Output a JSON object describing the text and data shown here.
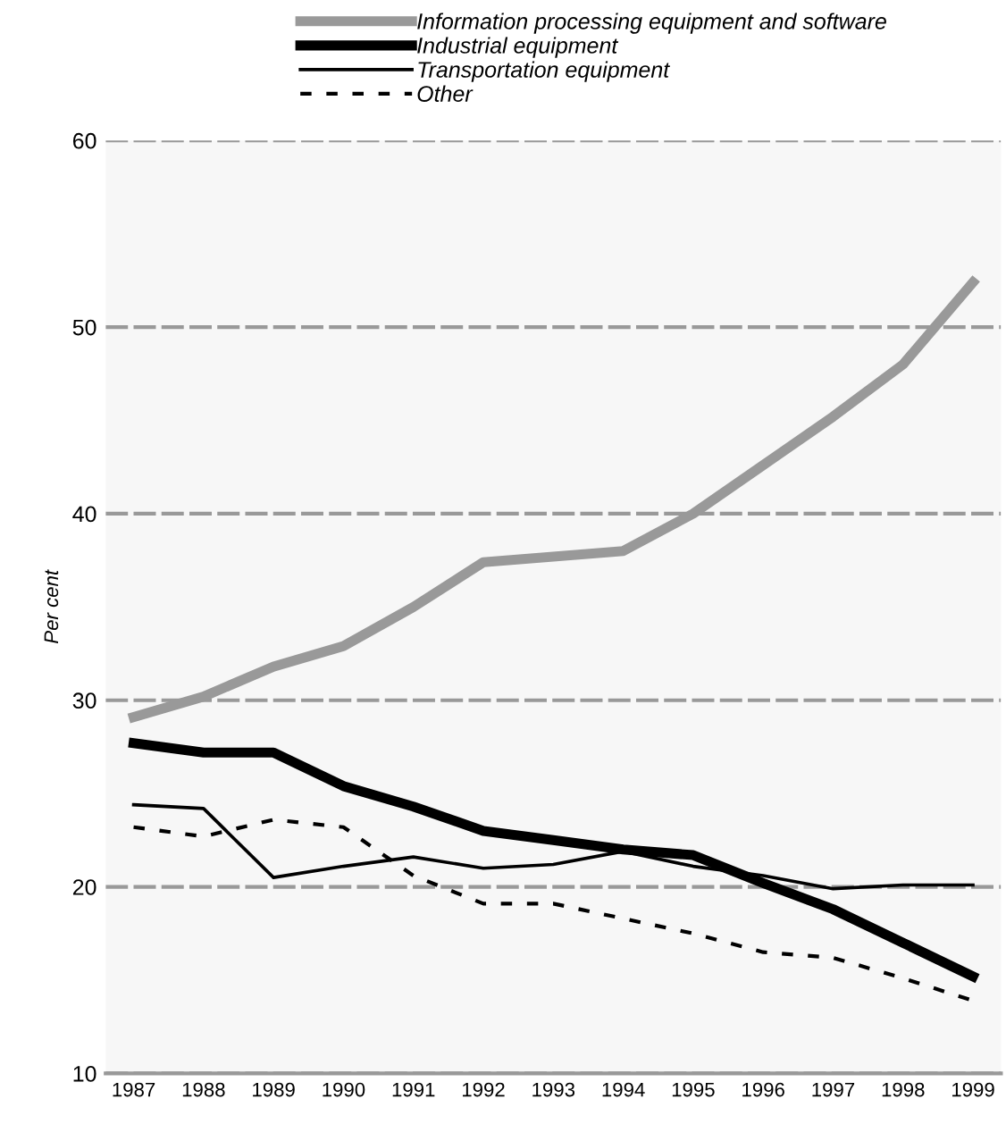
{
  "chart_data": {
    "type": "line",
    "ylabel": "Per cent",
    "categories": [
      "1987",
      "1988",
      "1989",
      "1990",
      "1991",
      "1992",
      "1993",
      "1994",
      "1995",
      "1996",
      "1997",
      "1998",
      "1999"
    ],
    "series": [
      {
        "name": "Information processing equipment and software",
        "color": "#999999",
        "values": [
          29.1,
          30.2,
          31.8,
          32.9,
          35.0,
          37.4,
          37.7,
          38.0,
          40.0,
          42.6,
          45.2,
          48.0,
          52.4
        ]
      },
      {
        "name": "Industrial equipment",
        "color": "#000000",
        "values": [
          27.7,
          27.2,
          27.2,
          25.4,
          24.3,
          23.0,
          22.5,
          22.0,
          21.7,
          20.2,
          18.8,
          17.0,
          15.2
        ]
      },
      {
        "name": "Transportation equipment",
        "color": "#000000",
        "values": [
          24.4,
          24.2,
          20.5,
          21.1,
          21.6,
          21.0,
          21.2,
          21.9,
          21.1,
          20.6,
          19.9,
          20.1,
          20.1
        ]
      },
      {
        "name": "Other",
        "color": "#000000",
        "line_style": "dashed",
        "values": [
          23.2,
          22.7,
          23.6,
          23.2,
          20.6,
          19.1,
          19.1,
          18.3,
          17.5,
          16.5,
          16.2,
          15.1,
          13.9
        ]
      }
    ],
    "ylim": [
      10,
      60
    ],
    "yticks": [
      10,
      20,
      30,
      40,
      50,
      60
    ],
    "grid": "y",
    "legend": "top",
    "marker": "none"
  }
}
